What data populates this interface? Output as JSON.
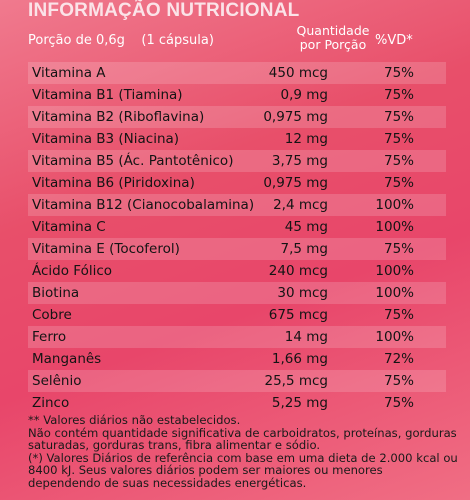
{
  "title": "INFORMAÇÃO NUTRICIONAL",
  "header": {
    "portion": "Porção de 0,6g    (1 cápsula)",
    "qty_line1": "Quantidade",
    "qty_line2": "por Porção",
    "vd": "%VD*"
  },
  "rows": [
    {
      "name": "Vitamina A",
      "qty": "450 mcg",
      "vd": "75%"
    },
    {
      "name": "Vitamina B1 (Tiamina)",
      "qty": "0,9 mg",
      "vd": "75%"
    },
    {
      "name": "Vitamina B2 (Riboflavina)",
      "qty": "0,975 mg",
      "vd": "75%"
    },
    {
      "name": "Vitamina B3 (Niacina)",
      "qty": "12 mg",
      "vd": "75%"
    },
    {
      "name": "Vitamina B5 (Ác. Pantotênico)",
      "qty": "3,75 mg",
      "vd": "75%"
    },
    {
      "name": "Vitamina B6 (Piridoxina)",
      "qty": "0,975 mg",
      "vd": "75%"
    },
    {
      "name": "Vitamina B12 (Cianocobalamina)",
      "qty": "2,4 mcg",
      "vd": "100%"
    },
    {
      "name": "Vitamina C",
      "qty": "45 mg",
      "vd": "100%"
    },
    {
      "name": "Vitamina E (Tocoferol)",
      "qty": "7,5 mg",
      "vd": "75%"
    },
    {
      "name": "Ácido Fólico",
      "qty": "240 mcg",
      "vd": "100%"
    },
    {
      "name": "Biotina",
      "qty": "30 mcg",
      "vd": "100%"
    },
    {
      "name": "Cobre",
      "qty": "675 mcg",
      "vd": "75%"
    },
    {
      "name": "Ferro",
      "qty": "14 mg",
      "vd": "100%"
    },
    {
      "name": "Manganês",
      "qty": "1,66 mg",
      "vd": "72%"
    },
    {
      "name": "Selênio",
      "qty": "25,5 mcg",
      "vd": "75%"
    },
    {
      "name": "Zinco",
      "qty": "5,25 mg",
      "vd": "75%"
    }
  ],
  "footnotes": [
    "** Valores  diários  não estabelecidos.",
    "Não contém quantidade significativa de carboidratos, proteínas, gorduras saturadas, gorduras trans, fibra alimentar e sódio.",
    "(*) Valores Diários de referência com base em uma dieta de 2.000 kcal ou 8400 kJ. Seus valores diários podem ser maiores ou menores dependendo de suas necessidades energéticas."
  ]
}
